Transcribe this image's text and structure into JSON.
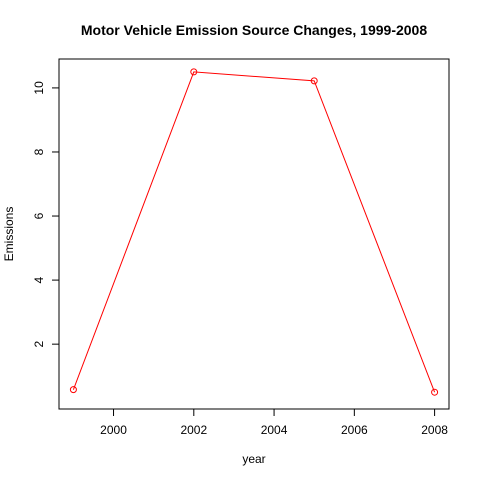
{
  "chart_data": {
    "type": "line",
    "title": "Motor Vehicle Emission Source Changes, 1999-2008",
    "xlabel": "year",
    "ylabel": "Emissions",
    "x": [
      1999,
      2002,
      2005,
      2008
    ],
    "series": [
      {
        "values": [
          0.58,
          10.5,
          10.22,
          0.5
        ],
        "color": "#ff0000",
        "marker": "open-circle"
      }
    ],
    "xlim": [
      1999,
      2008
    ],
    "ylim": [
      0.5,
      10.5
    ],
    "xticks": [
      2000,
      2002,
      2004,
      2006,
      2008
    ],
    "yticks": [
      2,
      4,
      6,
      8,
      10
    ],
    "grid": false,
    "legend": "none"
  }
}
